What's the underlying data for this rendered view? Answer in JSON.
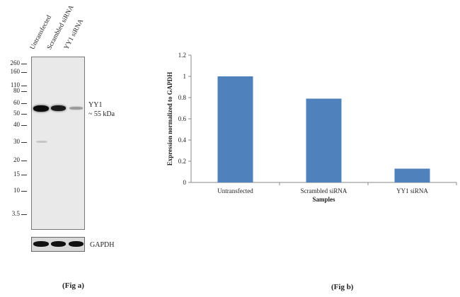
{
  "figure_a": {
    "lanes": [
      "Untransfected",
      "Scrambled siRNA",
      "YY1 siRNA"
    ],
    "markers": [
      "260",
      "160",
      "110",
      "80",
      "60",
      "50",
      "40",
      "30",
      "20",
      "15",
      "10",
      "3.5"
    ],
    "band_label": "YY1",
    "band_size": "~ 55 kDa",
    "loading_control": "GAPDH",
    "caption": "(Fig a)"
  },
  "chart_data": {
    "type": "bar",
    "categories": [
      "Untransfected",
      "Scrambled siRNA",
      "YY1 siRNA"
    ],
    "values": [
      1.0,
      0.79,
      0.13
    ],
    "title": "",
    "xlabel": "Samples",
    "ylabel": "Expression normalized to GAPDH",
    "ylim": [
      0,
      1.2
    ],
    "yticks": [
      "0",
      "0.2",
      "0.4",
      "0.6",
      "0.8",
      "1",
      "1.2"
    ],
    "bar_color": "#4f81bd",
    "grid": false,
    "legend": "none"
  },
  "figure_b": {
    "caption": "(Fig b)"
  }
}
